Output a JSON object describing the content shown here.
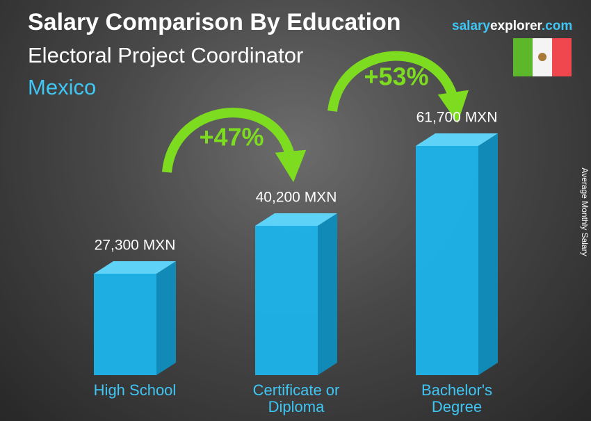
{
  "chart_data": {
    "type": "bar",
    "title": "Salary Comparison By Education",
    "subtitle": "Electoral Project Coordinator",
    "country": "Mexico",
    "brand_parts": [
      "salary",
      "explorer",
      ".com"
    ],
    "y_label": "Average Monthly Salary",
    "categories": [
      "High School",
      "Certificate or Diploma",
      "Bachelor's Degree"
    ],
    "values": [
      27300,
      40200,
      61700
    ],
    "value_labels": [
      "27,300 MXN",
      "40,200 MXN",
      "61,700 MXN"
    ],
    "annotations": [
      "+47%",
      "+53%"
    ],
    "color": "#1cb4ea"
  }
}
